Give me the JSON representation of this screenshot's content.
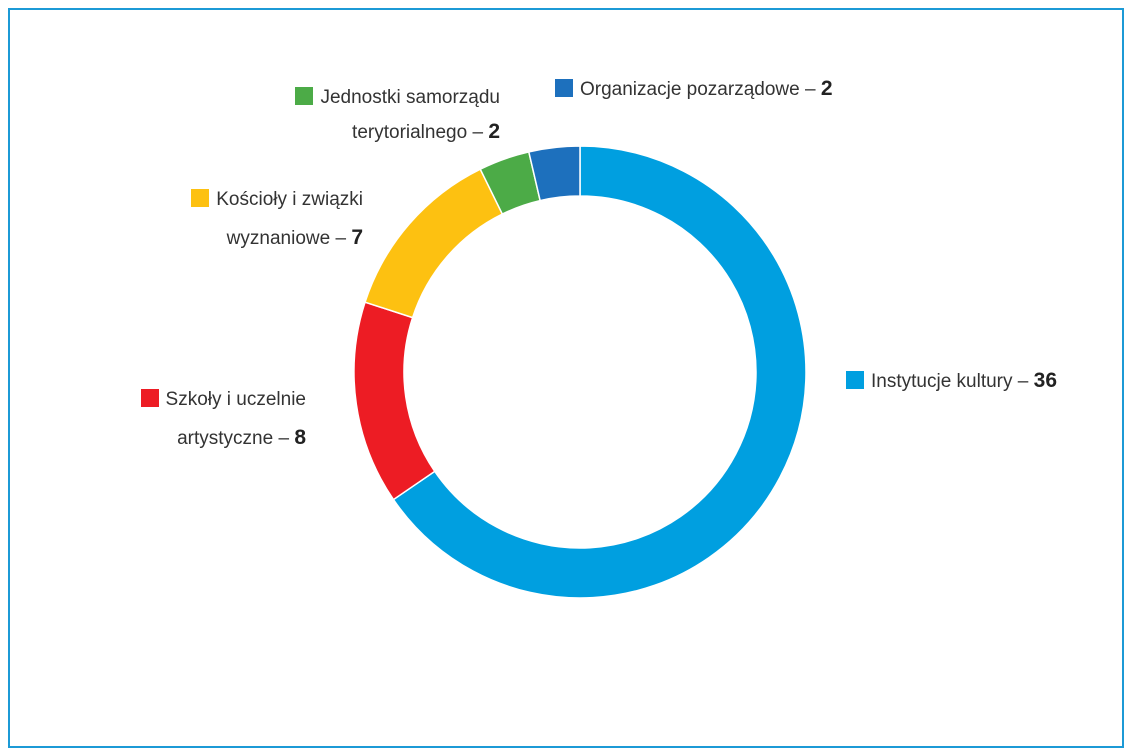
{
  "chart_data": {
    "type": "donut",
    "categories": [
      "Instytucje kultury",
      "Szkoły i uczelnie artystyczne",
      "Kościoły i związki wyznaniowe",
      "Jednostki samorządu terytorialnego",
      "Organizacje pozarządowe"
    ],
    "values": [
      36,
      8,
      7,
      2,
      2
    ],
    "colors": [
      "#009fe0",
      "#ed1c24",
      "#fdc111",
      "#4cab47",
      "#1d70bd"
    ],
    "label_separator": "–"
  }
}
